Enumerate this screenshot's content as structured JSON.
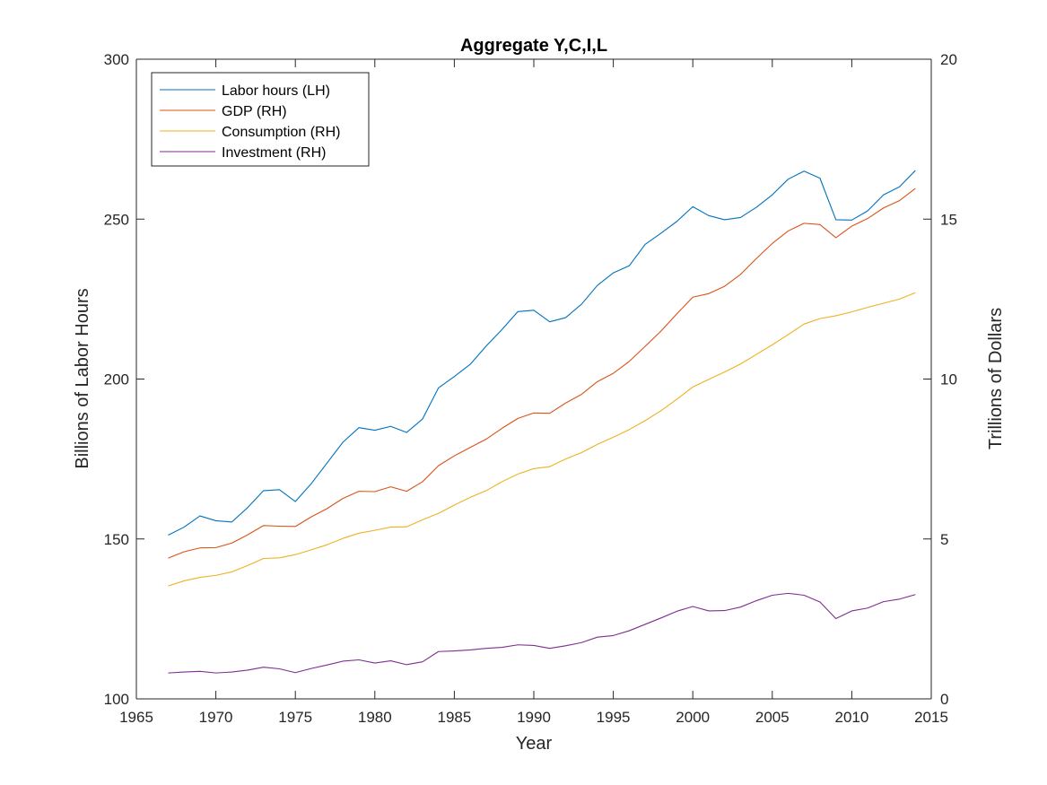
{
  "chart_data": {
    "type": "line",
    "title": "Aggregate Y,C,I,L",
    "xlabel": "Year",
    "ylabel_left": "Billions of Labor Hours",
    "ylabel_right": "Trillions of Dollars",
    "xlim": [
      1965,
      2015
    ],
    "ylim_left": [
      100,
      300
    ],
    "ylim_right": [
      0,
      20
    ],
    "x_ticks": [
      "1965",
      "1970",
      "1975",
      "1980",
      "1985",
      "1990",
      "1995",
      "2000",
      "2005",
      "2010",
      "2015"
    ],
    "y_ticks_left": [
      "100",
      "150",
      "200",
      "250",
      "300"
    ],
    "y_ticks_right": [
      "0",
      "5",
      "10",
      "15",
      "20"
    ],
    "grid": false,
    "legend_position": "top-left",
    "x": [
      1967,
      1968,
      1969,
      1970,
      1971,
      1972,
      1973,
      1974,
      1975,
      1976,
      1977,
      1978,
      1979,
      1980,
      1981,
      1982,
      1983,
      1984,
      1985,
      1986,
      1987,
      1988,
      1989,
      1990,
      1991,
      1992,
      1993,
      1994,
      1995,
      1996,
      1997,
      1998,
      1999,
      2000,
      2001,
      2002,
      2003,
      2004,
      2005,
      2006,
      2007,
      2008,
      2009,
      2010,
      2011,
      2012,
      2013,
      2014
    ],
    "series": [
      {
        "name": "Labor hours (LH)",
        "axis": "left",
        "color": "#0072BD",
        "values": [
          151.2,
          153.7,
          157.2,
          155.7,
          155.3,
          159.8,
          165.1,
          165.4,
          161.7,
          167.3,
          173.8,
          180.3,
          184.8,
          184.0,
          185.2,
          183.3,
          187.5,
          197.2,
          200.8,
          204.6,
          210.3,
          215.5,
          221.1,
          221.5,
          217.9,
          219.2,
          223.4,
          229.3,
          233.2,
          235.4,
          242.1,
          245.6,
          249.3,
          253.9,
          251.1,
          249.8,
          250.5,
          253.7,
          257.6,
          262.5,
          265.0,
          262.8,
          249.8,
          249.7,
          252.6,
          257.6,
          260.1,
          265.2
        ]
      },
      {
        "name": "GDP (RH)",
        "axis": "right",
        "color": "#D95319",
        "values": [
          4.4,
          4.6,
          4.72,
          4.73,
          4.87,
          5.13,
          5.42,
          5.4,
          5.39,
          5.69,
          5.95,
          6.27,
          6.49,
          6.48,
          6.63,
          6.49,
          6.79,
          7.29,
          7.6,
          7.86,
          8.12,
          8.46,
          8.77,
          8.94,
          8.93,
          9.25,
          9.52,
          9.92,
          10.18,
          10.55,
          11.02,
          11.5,
          12.04,
          12.56,
          12.67,
          12.9,
          13.27,
          13.77,
          14.24,
          14.63,
          14.87,
          14.83,
          14.42,
          14.78,
          15.02,
          15.35,
          15.58,
          15.96
        ]
      },
      {
        "name": "Consumption (RH)",
        "axis": "right",
        "color": "#EDB120",
        "values": [
          3.53,
          3.69,
          3.8,
          3.86,
          3.97,
          4.17,
          4.39,
          4.41,
          4.51,
          4.66,
          4.82,
          5.02,
          5.18,
          5.27,
          5.37,
          5.38,
          5.6,
          5.8,
          6.06,
          6.3,
          6.51,
          6.79,
          7.03,
          7.2,
          7.26,
          7.5,
          7.7,
          7.96,
          8.18,
          8.42,
          8.7,
          9.01,
          9.37,
          9.75,
          9.99,
          10.22,
          10.47,
          10.77,
          11.07,
          11.39,
          11.72,
          11.89,
          11.98,
          12.1,
          12.24,
          12.37,
          12.5,
          12.7
        ]
      },
      {
        "name": "Investment (RH)",
        "axis": "right",
        "color": "#7E2F8E",
        "values": [
          0.81,
          0.84,
          0.86,
          0.81,
          0.84,
          0.9,
          0.99,
          0.94,
          0.82,
          0.95,
          1.06,
          1.18,
          1.22,
          1.12,
          1.19,
          1.07,
          1.16,
          1.48,
          1.5,
          1.53,
          1.58,
          1.61,
          1.69,
          1.67,
          1.58,
          1.66,
          1.76,
          1.93,
          1.98,
          2.13,
          2.33,
          2.53,
          2.74,
          2.89,
          2.75,
          2.76,
          2.87,
          3.07,
          3.24,
          3.3,
          3.24,
          3.03,
          2.51,
          2.75,
          2.84,
          3.04,
          3.12,
          3.26
        ]
      }
    ]
  }
}
